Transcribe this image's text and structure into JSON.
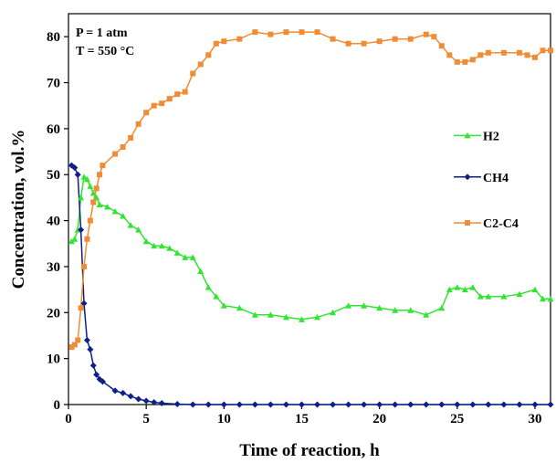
{
  "chart_data": {
    "type": "line",
    "title": "",
    "xlabel": "Time of reaction, h",
    "ylabel": "Concentration, vol.%",
    "xlim": [
      0,
      31
    ],
    "ylim": [
      0,
      85
    ],
    "x_ticks": [
      0,
      5,
      10,
      15,
      20,
      25,
      30
    ],
    "y_ticks": [
      0,
      10,
      20,
      30,
      40,
      50,
      60,
      70,
      80
    ],
    "grid": false,
    "legend_position": "right",
    "annotations": [
      "P = 1 atm",
      "T = 550 °C"
    ],
    "series": [
      {
        "name": "H2",
        "color": "#33e533",
        "marker": "triangle",
        "x": [
          0.2,
          0.4,
          0.6,
          0.8,
          1.0,
          1.2,
          1.4,
          1.6,
          1.8,
          2.0,
          2.5,
          3.0,
          3.5,
          4.0,
          4.5,
          5.0,
          5.5,
          6.0,
          6.5,
          7.0,
          7.5,
          8.0,
          8.5,
          9.0,
          9.5,
          10.0,
          11.0,
          12.0,
          13.0,
          14.0,
          15.0,
          16.0,
          17.0,
          18.0,
          19.0,
          20.0,
          21.0,
          22.0,
          23.0,
          24.0,
          24.5,
          25.0,
          25.5,
          26.0,
          26.5,
          27.0,
          28.0,
          29.0,
          30.0,
          30.5,
          31.0
        ],
        "values": [
          35.5,
          36,
          38,
          45,
          49.5,
          49,
          47.5,
          46,
          45,
          43.5,
          43,
          42,
          41,
          39,
          38,
          35.5,
          34.5,
          34.5,
          34,
          33,
          32,
          32,
          29,
          25.5,
          23.5,
          21.5,
          21,
          19.5,
          19.5,
          19,
          18.5,
          19,
          20,
          21.5,
          21.5,
          21,
          20.5,
          20.5,
          19.5,
          21,
          25,
          25.5,
          25,
          25.5,
          23.5,
          23.5,
          23.5,
          24,
          25,
          23,
          23
        ]
      },
      {
        "name": "CH4",
        "color": "#0d1f8c",
        "marker": "diamond",
        "x": [
          0.2,
          0.4,
          0.6,
          0.8,
          1.0,
          1.2,
          1.4,
          1.6,
          1.8,
          2.0,
          2.2,
          3.0,
          3.5,
          4.0,
          4.5,
          5.0,
          5.5,
          6.0,
          7.0,
          8.0,
          9.0,
          10.0,
          11.0,
          12.0,
          13.0,
          14.0,
          15.0,
          16.0,
          17.0,
          18.0,
          19.0,
          20.0,
          21.0,
          22.0,
          23.0,
          24.0,
          25.0,
          26.0,
          27.0,
          28.0,
          29.0,
          30.0,
          31.0
        ],
        "values": [
          52,
          51.5,
          50,
          38,
          22,
          14,
          12,
          8.5,
          6.5,
          5.5,
          5,
          3,
          2.5,
          1.8,
          1.2,
          0.8,
          0.5,
          0.3,
          0.1,
          0,
          0,
          0,
          0,
          0,
          0,
          0,
          0,
          0,
          0,
          0,
          0,
          0,
          0,
          0,
          0,
          0,
          0,
          0,
          0,
          0,
          0,
          0,
          0
        ]
      },
      {
        "name": "C2-C4",
        "color": "#f08c35",
        "marker": "square",
        "x": [
          0.2,
          0.4,
          0.6,
          0.8,
          1.0,
          1.2,
          1.4,
          1.6,
          1.8,
          2.0,
          2.2,
          3.0,
          3.5,
          4.0,
          4.5,
          5.0,
          5.5,
          6.0,
          6.5,
          7.0,
          7.5,
          8.0,
          8.5,
          9.0,
          9.5,
          10.0,
          11.0,
          12.0,
          13.0,
          14.0,
          15.0,
          16.0,
          17.0,
          18.0,
          19.0,
          20.0,
          21.0,
          22.0,
          23.0,
          23.5,
          24.0,
          24.5,
          25.0,
          25.5,
          26.0,
          26.5,
          27.0,
          28.0,
          29.0,
          29.5,
          30.0,
          30.5,
          31.0
        ],
        "values": [
          12.5,
          13,
          14,
          21,
          30,
          36,
          40,
          44,
          47,
          50,
          52,
          54.5,
          56,
          58,
          61,
          63.5,
          65,
          65.5,
          66.5,
          67.5,
          68,
          72,
          74,
          76,
          78.5,
          79,
          79.5,
          81,
          80.5,
          81,
          81,
          81,
          79.5,
          78.5,
          78.5,
          79,
          79.5,
          79.5,
          80.5,
          80,
          78,
          76,
          74.5,
          74.5,
          75,
          76,
          76.5,
          76.5,
          76.5,
          76,
          75.5,
          77,
          77
        ]
      }
    ]
  }
}
